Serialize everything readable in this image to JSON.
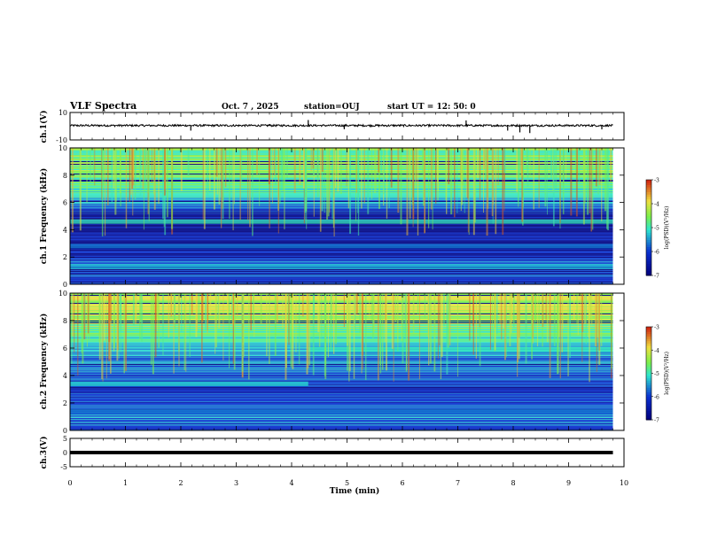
{
  "header": {
    "title": "VLF Spectra",
    "date": "Oct. 7 , 2025",
    "station": "station=OUJ",
    "start": "start UT =   12: 50: 0"
  },
  "colorbar": {
    "label": "log(PSD)(V²/Hz)",
    "ticks": [
      "-3",
      "-4",
      "-5",
      "-6",
      "-7"
    ]
  },
  "palette": {
    "deep": "#00007a",
    "blue": "#0a2fd0",
    "cyan": "#2ee6d0",
    "green": "#7cf04a",
    "yellow": "#f0e040",
    "red": "#d02010",
    "black": "#000000"
  },
  "chart_data": [
    {
      "id": "ch1-waveform",
      "type": "line",
      "ylabel": "ch.1(V)",
      "ylim": [
        -10,
        10
      ],
      "ytick_labels": [
        "10",
        "-10"
      ],
      "baseline": 0.5,
      "spikes": [
        {
          "t": 2.18,
          "v": -3.2
        },
        {
          "t": 3.6,
          "v": 1.6
        },
        {
          "t": 4.3,
          "v": 4.5
        },
        {
          "t": 4.95,
          "v": -2.2
        },
        {
          "t": 7.15,
          "v": 4.2
        },
        {
          "t": 7.9,
          "v": -3.2
        },
        {
          "t": 8.12,
          "v": -4.5
        },
        {
          "t": 8.3,
          "v": -5.0
        },
        {
          "t": 9.6,
          "v": -2.3
        }
      ]
    },
    {
      "id": "ch1-spectrogram",
      "type": "heatmap",
      "ylabel": "ch.1 Frequency (kHz)",
      "ylim": [
        0,
        10
      ],
      "yticks": [
        "0",
        "2",
        "4",
        "6",
        "8",
        "10"
      ],
      "profile_f_khz": [
        0,
        1,
        1.5,
        2,
        3,
        3.5,
        4,
        4.6,
        5.2,
        5.8,
        6.5,
        7.5,
        8.5,
        10
      ],
      "profile_log_psd": [
        -6.2,
        -5.9,
        -5.4,
        -6.2,
        -6.6,
        -6.4,
        -6.7,
        -6.9,
        -6.3,
        -5.7,
        -5.1,
        -4.8,
        -4.6,
        -4.7
      ],
      "features": [
        {
          "t_start": 0,
          "t_end": 9.8,
          "f_khz": 1.3,
          "log_psd": -5.4
        },
        {
          "t_start": 0,
          "t_end": 9.8,
          "f_khz": 2.8,
          "log_psd": -5.6
        },
        {
          "t_start": 0,
          "t_end": 9.8,
          "f_khz": 4.6,
          "log_psd": -5.0
        }
      ]
    },
    {
      "id": "ch2-spectrogram",
      "type": "heatmap",
      "ylabel": "ch.2 Frequency (kHz)",
      "ylim": [
        0,
        10
      ],
      "yticks": [
        "0",
        "2",
        "4",
        "6",
        "8",
        "10"
      ],
      "profile_f_khz": [
        0,
        1,
        2,
        3,
        4,
        5,
        6,
        7,
        8,
        9,
        10
      ],
      "profile_log_psd": [
        -6.3,
        -5.6,
        -6.0,
        -6.2,
        -6.0,
        -5.8,
        -5.2,
        -4.9,
        -4.4,
        -4.2,
        -4.3
      ],
      "features": [
        {
          "t_start": 0,
          "t_end": 4.3,
          "f_khz": 3.4,
          "log_psd": -5.1
        },
        {
          "t_start": 4.3,
          "t_end": 9.8,
          "f_khz": 5.9,
          "log_psd": -5.0
        },
        {
          "t_start": 0,
          "t_end": 9.8,
          "f_khz": 1.4,
          "log_psd": -5.6
        }
      ]
    },
    {
      "id": "ch3-waveform",
      "type": "line",
      "ylabel": "ch.3(V)",
      "ylim": [
        -5,
        5
      ],
      "ytick_labels": [
        "5",
        "0",
        "-5"
      ],
      "baseline": 0.0
    }
  ],
  "xaxis": {
    "label": "Time (min)",
    "range": [
      0,
      10
    ],
    "ticks": [
      "0",
      "1",
      "2",
      "3",
      "4",
      "5",
      "6",
      "7",
      "8",
      "9",
      "10"
    ],
    "data_end": 9.8
  }
}
